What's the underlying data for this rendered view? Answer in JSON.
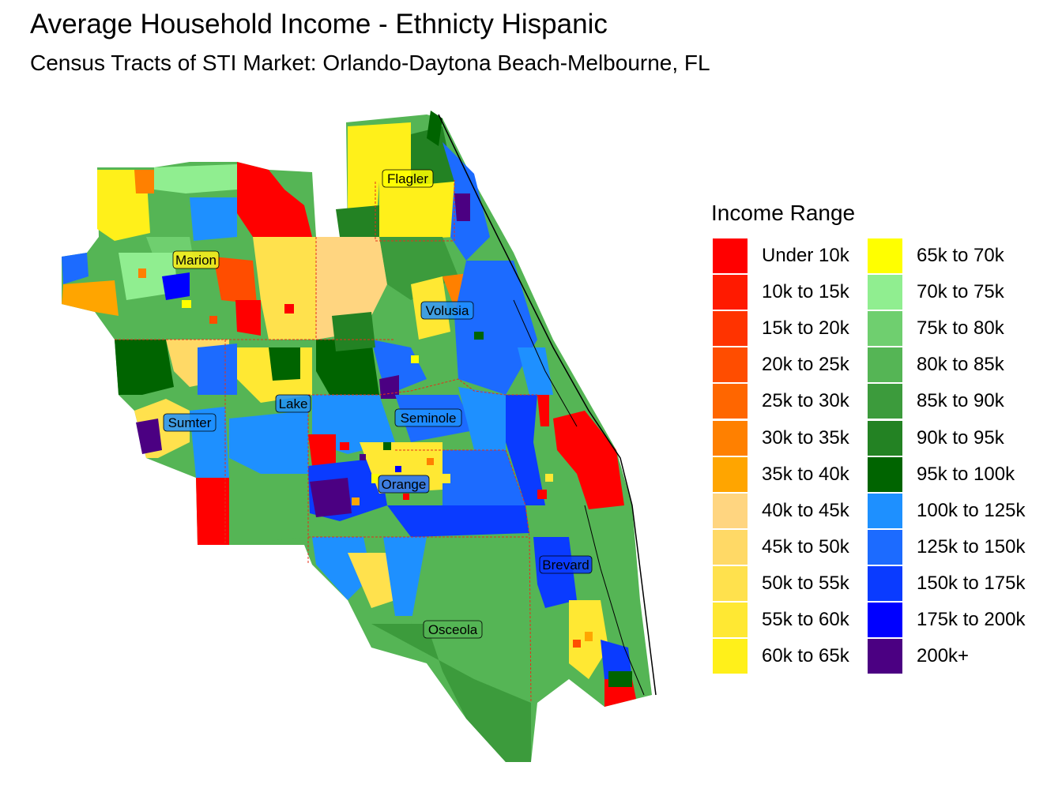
{
  "title": "Average Household Income - Ethnicty Hispanic",
  "subtitle": "Census Tracts of STI Market: Orlando-Daytona Beach-Melbourne, FL",
  "legend": {
    "title": "Income Range",
    "items": [
      {
        "label": "Under 10k",
        "color": "#FF0000"
      },
      {
        "label": "10k to 15k",
        "color": "#FF1A00"
      },
      {
        "label": "15k to 20k",
        "color": "#FF3300"
      },
      {
        "label": "20k to 25k",
        "color": "#FF4D00"
      },
      {
        "label": "25k to 30k",
        "color": "#FF6600"
      },
      {
        "label": "30k to 35k",
        "color": "#FF8000"
      },
      {
        "label": "35k to 40k",
        "color": "#FFA500"
      },
      {
        "label": "40k to 45k",
        "color": "#FFD580"
      },
      {
        "label": "45k to 50k",
        "color": "#FFD966"
      },
      {
        "label": "50k to 55k",
        "color": "#FFE14D"
      },
      {
        "label": "55k to 60k",
        "color": "#FFE833"
      },
      {
        "label": "60k to 65k",
        "color": "#FFF01A"
      },
      {
        "label": "65k to 70k",
        "color": "#FFFF00"
      },
      {
        "label": "70k to 75k",
        "color": "#90EE90"
      },
      {
        "label": "75k to 80k",
        "color": "#6FCF6F"
      },
      {
        "label": "80k to 85k",
        "color": "#55B555"
      },
      {
        "label": "85k to 90k",
        "color": "#3C9B3C"
      },
      {
        "label": "90k to 95k",
        "color": "#238223"
      },
      {
        "label": "95k to 100k",
        "color": "#006400"
      },
      {
        "label": "100k to 125k",
        "color": "#1E90FF"
      },
      {
        "label": "125k to 150k",
        "color": "#1C6BFF"
      },
      {
        "label": "150k to 175k",
        "color": "#0A3BFF"
      },
      {
        "label": "175k to 200k",
        "color": "#0000FF"
      },
      {
        "label": "200k+",
        "color": "#4B0082"
      }
    ]
  },
  "counties": [
    "Flagler",
    "Marion",
    "Volusia",
    "Lake",
    "Seminole",
    "Sumter",
    "Orange",
    "Brevard",
    "Osceola"
  ]
}
